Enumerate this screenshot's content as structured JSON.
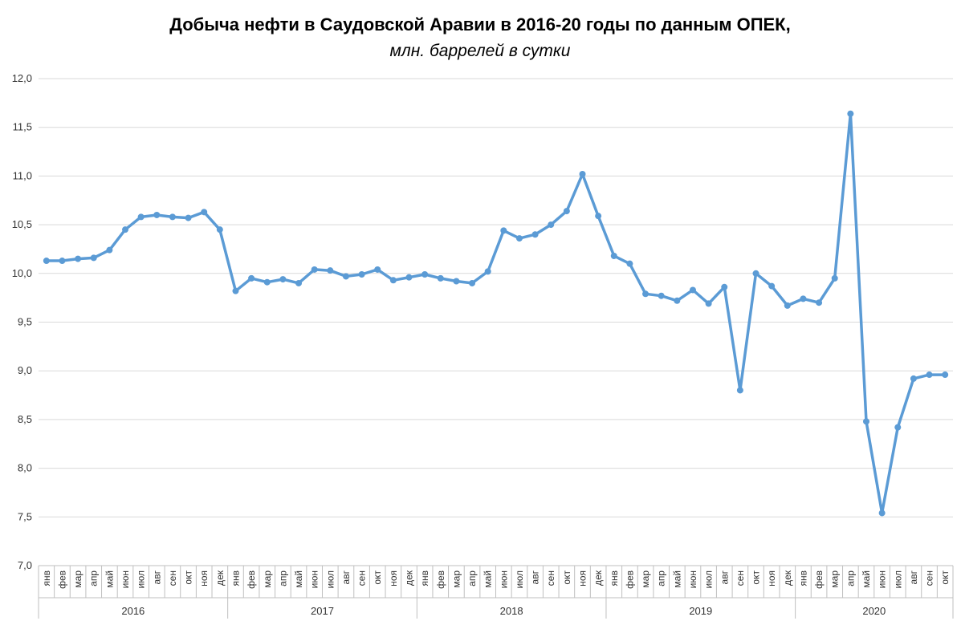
{
  "colors": {
    "series": "#5b9bd5",
    "grid": "#d9d9d9",
    "axis": "#bfbfbf"
  },
  "chart_data": {
    "type": "line",
    "title": "Добыча нефти в Саудовской Аравии в 2016-20 годы по данным ОПЕК,",
    "subtitle": "млн. баррелей в сутки",
    "xlabel": "",
    "ylabel": "",
    "ylim": [
      7.0,
      12.0
    ],
    "yticks": [
      "7,0",
      "7,5",
      "8,0",
      "8,5",
      "9,0",
      "9,5",
      "10,0",
      "10,5",
      "11,0",
      "11,5",
      "12,0"
    ],
    "grid": true,
    "legend": "none",
    "years": [
      {
        "label": "2016",
        "months": 12
      },
      {
        "label": "2017",
        "months": 12
      },
      {
        "label": "2018",
        "months": 12
      },
      {
        "label": "2019",
        "months": 12
      },
      {
        "label": "2020",
        "months": 10
      }
    ],
    "categories": [
      "янв",
      "фев",
      "мар",
      "апр",
      "май",
      "июн",
      "июл",
      "авг",
      "сен",
      "окт",
      "ноя",
      "дек",
      "янв",
      "фев",
      "мар",
      "апр",
      "май",
      "июн",
      "июл",
      "авг",
      "сен",
      "окт",
      "ноя",
      "дек",
      "янв",
      "фев",
      "мар",
      "апр",
      "май",
      "июн",
      "июл",
      "авг",
      "сен",
      "окт",
      "ноя",
      "дек",
      "янв",
      "фев",
      "мар",
      "апр",
      "май",
      "июн",
      "июл",
      "авг",
      "сен",
      "окт",
      "ноя",
      "дек",
      "янв",
      "фев",
      "мар",
      "апр",
      "май",
      "июн",
      "июл",
      "авг",
      "сен",
      "окт"
    ],
    "values": [
      10.13,
      10.13,
      10.15,
      10.16,
      10.24,
      10.45,
      10.58,
      10.6,
      10.58,
      10.57,
      10.63,
      10.45,
      9.82,
      9.95,
      9.91,
      9.94,
      9.9,
      10.04,
      10.03,
      9.97,
      9.99,
      10.04,
      9.93,
      9.96,
      9.99,
      9.95,
      9.92,
      9.9,
      10.02,
      10.44,
      10.36,
      10.4,
      10.5,
      10.64,
      11.02,
      10.59,
      10.18,
      10.1,
      9.79,
      9.77,
      9.72,
      9.83,
      9.69,
      9.86,
      8.8,
      10.0,
      9.87,
      9.67,
      9.74,
      9.7,
      9.95,
      11.64,
      8.48,
      7.54,
      8.42,
      8.92,
      8.96,
      8.96
    ]
  }
}
